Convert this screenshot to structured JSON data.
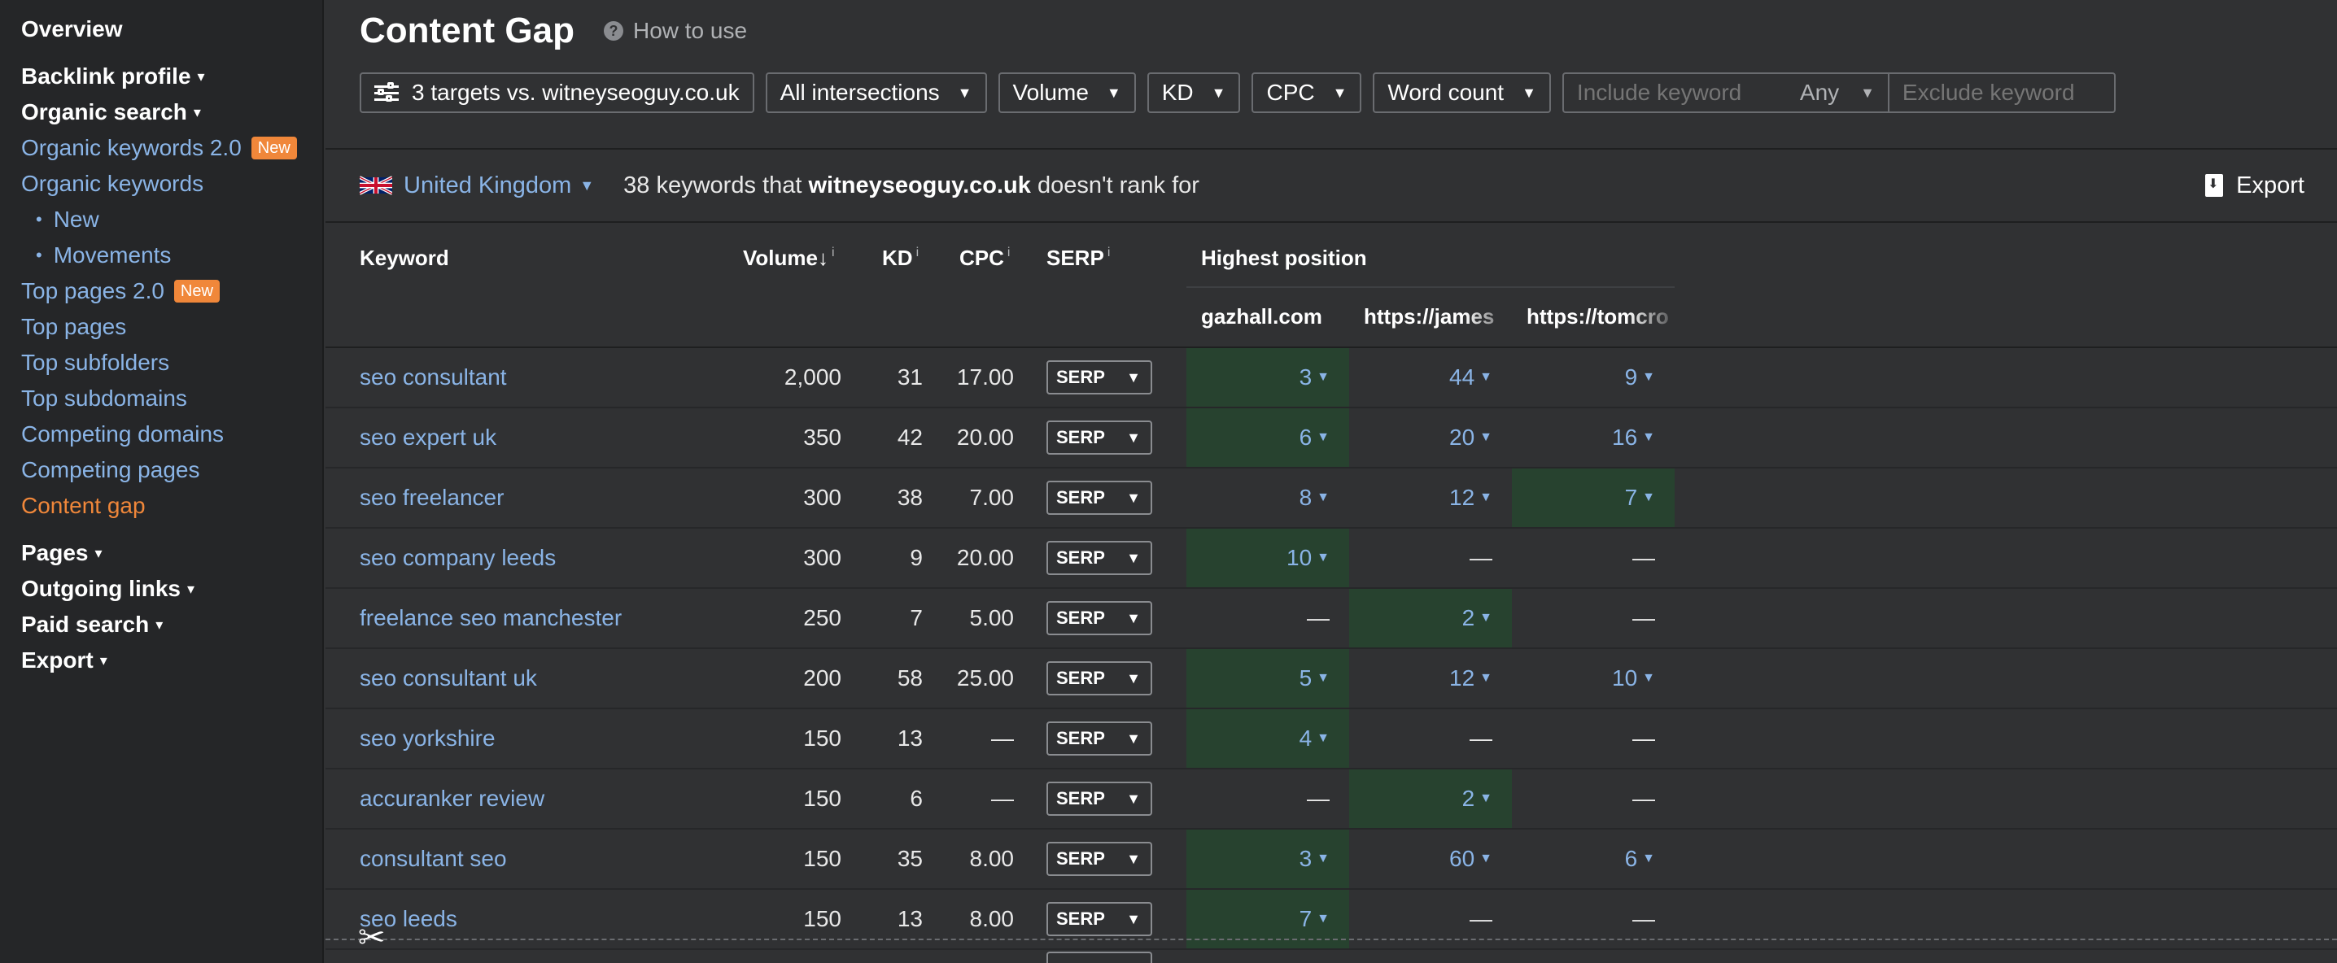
{
  "sidebar": {
    "items": [
      {
        "label": "Overview",
        "type": "bold"
      },
      {
        "gap": true
      },
      {
        "label": "Backlink profile",
        "type": "bold",
        "caret": "▾"
      },
      {
        "label": "Organic search",
        "type": "bold",
        "caret": "▾"
      },
      {
        "label": "Organic keywords 2.0",
        "type": "link",
        "badge": "New"
      },
      {
        "label": "Organic keywords",
        "type": "link"
      },
      {
        "label": "New",
        "type": "sub"
      },
      {
        "label": "Movements",
        "type": "sub"
      },
      {
        "label": "Top pages 2.0",
        "type": "link",
        "badge": "New"
      },
      {
        "label": "Top pages",
        "type": "link"
      },
      {
        "label": "Top subfolders",
        "type": "link"
      },
      {
        "label": "Top subdomains",
        "type": "link"
      },
      {
        "label": "Competing domains",
        "type": "link"
      },
      {
        "label": "Competing pages",
        "type": "link"
      },
      {
        "label": "Content gap",
        "type": "active"
      },
      {
        "gap": true
      },
      {
        "label": "Pages",
        "type": "bold",
        "caret": "▾"
      },
      {
        "label": "Outgoing links",
        "type": "bold",
        "caret": "▾"
      },
      {
        "label": "Paid search",
        "type": "bold",
        "caret": "▾"
      },
      {
        "label": "Export",
        "type": "bold",
        "caret": "▾"
      }
    ]
  },
  "header": {
    "title": "Content Gap",
    "how_to_use": "How to use",
    "help_icon": "question-circle-icon"
  },
  "filters": {
    "targets": "3 targets vs. witneyseoguy.co.uk",
    "intersections": "All intersections",
    "volume": "Volume",
    "kd": "KD",
    "cpc": "CPC",
    "word_count": "Word count",
    "include_placeholder": "Include keyword",
    "any": "Any",
    "exclude_placeholder": "Exclude keyword",
    "dropdown_icon": "▼"
  },
  "info": {
    "country": "United Kingdom",
    "summary_prefix": "38 keywords that",
    "summary_domain": "witneyseoguy.co.uk",
    "summary_suffix": "doesn't rank for",
    "export": "Export"
  },
  "table": {
    "headers": {
      "keyword": "Keyword",
      "volume": "Volume",
      "volume_sort": "↓",
      "kd": "KD",
      "cpc": "CPC",
      "serp": "SERP",
      "info_mark": "i",
      "highest_position": "Highest position",
      "sites": [
        "gazhall.com",
        "https://james",
        "https://tomcro"
      ]
    },
    "serp_label": "SERP",
    "rows": [
      {
        "keyword": "seo consultant",
        "volume": "2,000",
        "kd": "31",
        "cpc": "17.00",
        "positions": [
          "3",
          "44",
          "9"
        ],
        "highlight": 0
      },
      {
        "keyword": "seo expert uk",
        "volume": "350",
        "kd": "42",
        "cpc": "20.00",
        "positions": [
          "6",
          "20",
          "16"
        ],
        "highlight": 0
      },
      {
        "keyword": "seo freelancer",
        "volume": "300",
        "kd": "38",
        "cpc": "7.00",
        "positions": [
          "8",
          "12",
          "7"
        ],
        "highlight": 2
      },
      {
        "keyword": "seo company leeds",
        "volume": "300",
        "kd": "9",
        "cpc": "20.00",
        "positions": [
          "10",
          "—",
          "—"
        ],
        "highlight": 0
      },
      {
        "keyword": "freelance seo manchester",
        "volume": "250",
        "kd": "7",
        "cpc": "5.00",
        "positions": [
          "—",
          "2",
          "—"
        ],
        "highlight": 1
      },
      {
        "keyword": "seo consultant uk",
        "volume": "200",
        "kd": "58",
        "cpc": "25.00",
        "positions": [
          "5",
          "12",
          "10"
        ],
        "highlight": 0
      },
      {
        "keyword": "seo yorkshire",
        "volume": "150",
        "kd": "13",
        "cpc": "—",
        "positions": [
          "4",
          "—",
          "—"
        ],
        "highlight": 0
      },
      {
        "keyword": "accuranker review",
        "volume": "150",
        "kd": "6",
        "cpc": "—",
        "positions": [
          "—",
          "2",
          "—"
        ],
        "highlight": 1
      },
      {
        "keyword": "consultant seo",
        "volume": "150",
        "kd": "35",
        "cpc": "8.00",
        "positions": [
          "3",
          "60",
          "6"
        ],
        "highlight": 0
      },
      {
        "keyword": "seo leeds",
        "volume": "150",
        "kd": "13",
        "cpc": "8.00",
        "positions": [
          "7",
          "—",
          "—"
        ],
        "highlight": 0
      }
    ]
  },
  "colors": {
    "accent_link": "#8ab4e6",
    "active": "#f0873a",
    "highlight": "#27422f",
    "background": "#303133",
    "sidebar": "#252628"
  },
  "cut_icon": "✂"
}
